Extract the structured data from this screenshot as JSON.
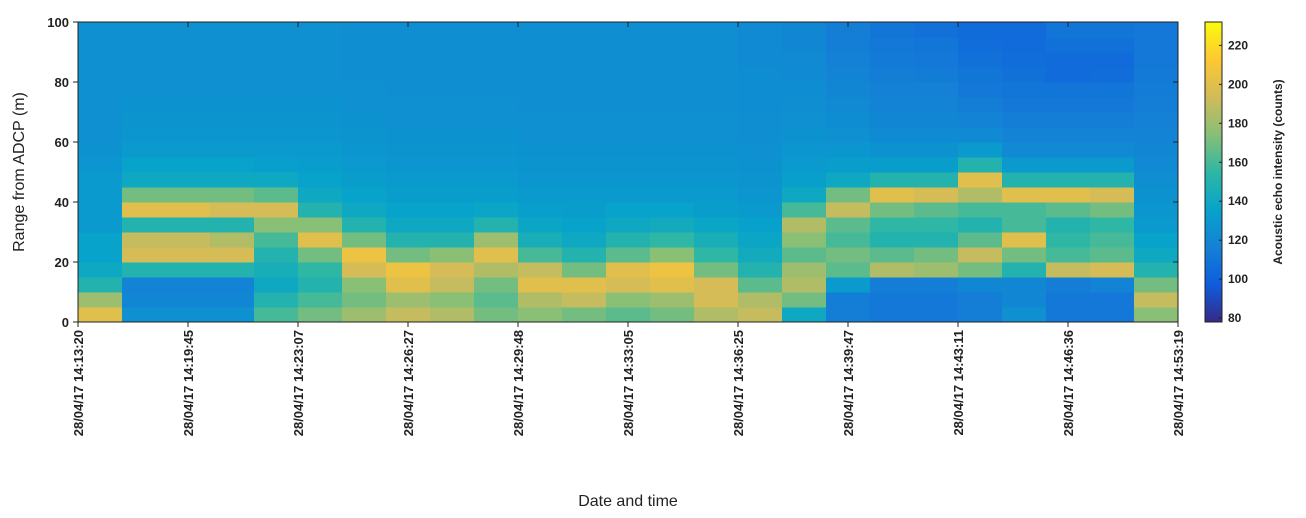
{
  "chart_data": {
    "type": "heatmap",
    "xlabel": "Date and time",
    "ylabel": "Range from ADCP (m)",
    "colorbar_label": "Acoustic echo intensity (counts)",
    "colormap": "parula",
    "xlim": [
      0,
      100
    ],
    "ylim": [
      0,
      100
    ],
    "clim": [
      78,
      232
    ],
    "xticks": [
      {
        "value": 0,
        "label": "28/04/17 14:13:20"
      },
      {
        "value": 10,
        "label": "28/04/17 14:19:45"
      },
      {
        "value": 20,
        "label": "28/04/17 14:23:07"
      },
      {
        "value": 30,
        "label": "28/04/17 14:26:27"
      },
      {
        "value": 40,
        "label": "28/04/17 14:29:48"
      },
      {
        "value": 50,
        "label": "28/04/17 14:33:05"
      },
      {
        "value": 60,
        "label": "28/04/17 14:36:25"
      },
      {
        "value": 70,
        "label": "28/04/17 14:39:47"
      },
      {
        "value": 80,
        "label": "28/04/17 14:43:11"
      },
      {
        "value": 90,
        "label": "28/04/17 14:46:36"
      },
      {
        "value": 100,
        "label": "28/04/17 14:53:19"
      }
    ],
    "yticks": [
      0,
      20,
      40,
      60,
      80,
      100
    ],
    "cticks": [
      80,
      100,
      120,
      140,
      160,
      180,
      200,
      220
    ],
    "x": [
      2,
      6,
      10,
      14,
      18,
      22,
      26,
      30,
      34,
      38,
      42,
      46,
      50,
      54,
      58,
      62,
      66,
      70,
      74,
      78,
      82,
      86,
      90,
      94,
      98
    ],
    "y": [
      2.5,
      7.5,
      12.5,
      17.5,
      22.5,
      27.5,
      32.5,
      37.5,
      42.5,
      47.5,
      52.5,
      57.5,
      62.5,
      67.5,
      72.5,
      77.5,
      82.5,
      87.5,
      92.5,
      97.5
    ],
    "values": [
      [
        200,
        180,
        150,
        140,
        135,
        135,
        130,
        130,
        130,
        130,
        128,
        126,
        125,
        125,
        125,
        125,
        125,
        125,
        125,
        125
      ],
      [
        125,
        120,
        118,
        150,
        195,
        190,
        150,
        200,
        170,
        140,
        135,
        130,
        128,
        127,
        126,
        125,
        125,
        125,
        125,
        125
      ],
      [
        125,
        120,
        118,
        150,
        195,
        190,
        150,
        200,
        170,
        140,
        135,
        130,
        128,
        127,
        126,
        125,
        125,
        125,
        125,
        125
      ],
      [
        125,
        120,
        118,
        150,
        195,
        185,
        150,
        195,
        170,
        140,
        135,
        130,
        128,
        127,
        126,
        125,
        125,
        125,
        125,
        125
      ],
      [
        160,
        150,
        140,
        145,
        150,
        160,
        175,
        195,
        165,
        140,
        133,
        130,
        128,
        127,
        126,
        125,
        125,
        125,
        125,
        125
      ],
      [
        170,
        160,
        150,
        155,
        170,
        200,
        175,
        150,
        140,
        135,
        132,
        130,
        128,
        127,
        126,
        125,
        125,
        125,
        125,
        125
      ],
      [
        180,
        170,
        175,
        195,
        205,
        170,
        150,
        140,
        135,
        132,
        130,
        128,
        127,
        126,
        125,
        125,
        124,
        124,
        124,
        124
      ],
      [
        190,
        180,
        200,
        205,
        170,
        150,
        140,
        135,
        132,
        130,
        128,
        127,
        126,
        125,
        125,
        124,
        124,
        124,
        124,
        124
      ],
      [
        185,
        175,
        190,
        195,
        175,
        150,
        140,
        135,
        132,
        130,
        128,
        127,
        126,
        125,
        125,
        124,
        124,
        124,
        124,
        124
      ],
      [
        170,
        165,
        170,
        185,
        200,
        180,
        150,
        138,
        132,
        130,
        128,
        127,
        126,
        125,
        125,
        124,
        124,
        124,
        124,
        124
      ],
      [
        175,
        185,
        200,
        190,
        160,
        145,
        138,
        133,
        130,
        128,
        127,
        126,
        125,
        125,
        124,
        124,
        124,
        124,
        124,
        124
      ],
      [
        170,
        190,
        200,
        170,
        150,
        140,
        135,
        132,
        130,
        128,
        127,
        126,
        125,
        125,
        124,
        124,
        124,
        124,
        124,
        124
      ],
      [
        165,
        175,
        195,
        200,
        165,
        150,
        140,
        135,
        130,
        128,
        127,
        126,
        125,
        125,
        124,
        124,
        124,
        124,
        124,
        124
      ],
      [
        170,
        180,
        200,
        205,
        175,
        155,
        142,
        135,
        130,
        128,
        127,
        126,
        125,
        125,
        124,
        124,
        124,
        124,
        124,
        124
      ],
      [
        185,
        195,
        195,
        170,
        155,
        145,
        138,
        132,
        130,
        128,
        127,
        126,
        125,
        125,
        124,
        124,
        124,
        124,
        124,
        124
      ],
      [
        190,
        185,
        165,
        150,
        142,
        138,
        134,
        130,
        128,
        127,
        126,
        125,
        124,
        124,
        123,
        123,
        123,
        122,
        122,
        122
      ],
      [
        140,
        170,
        185,
        180,
        165,
        175,
        185,
        160,
        140,
        133,
        130,
        128,
        126,
        125,
        124,
        123,
        122,
        121,
        120,
        120
      ],
      [
        115,
        115,
        130,
        165,
        170,
        160,
        165,
        190,
        170,
        140,
        132,
        128,
        125,
        123,
        121,
        120,
        118,
        116,
        115,
        115
      ],
      [
        112,
        112,
        115,
        185,
        165,
        150,
        155,
        170,
        200,
        150,
        132,
        126,
        122,
        120,
        118,
        116,
        115,
        113,
        112,
        110
      ],
      [
        112,
        112,
        115,
        180,
        170,
        150,
        155,
        165,
        195,
        150,
        132,
        126,
        122,
        120,
        118,
        116,
        114,
        112,
        110,
        108
      ],
      [
        115,
        115,
        120,
        170,
        190,
        165,
        150,
        160,
        185,
        200,
        150,
        130,
        122,
        118,
        115,
        112,
        110,
        108,
        106,
        105
      ],
      [
        125,
        120,
        120,
        150,
        170,
        200,
        160,
        160,
        200,
        150,
        130,
        122,
        118,
        115,
        112,
        110,
        108,
        106,
        105,
        105
      ],
      [
        112,
        112,
        115,
        190,
        160,
        155,
        150,
        165,
        200,
        150,
        130,
        122,
        118,
        115,
        112,
        110,
        105,
        105,
        108,
        110
      ],
      [
        112,
        112,
        118,
        195,
        165,
        160,
        155,
        170,
        195,
        150,
        130,
        122,
        118,
        115,
        112,
        110,
        106,
        105,
        108,
        110
      ],
      [
        175,
        190,
        170,
        150,
        140,
        135,
        130,
        128,
        126,
        124,
        122,
        120,
        118,
        116,
        115,
        114,
        113,
        112,
        112,
        112
      ]
    ]
  }
}
